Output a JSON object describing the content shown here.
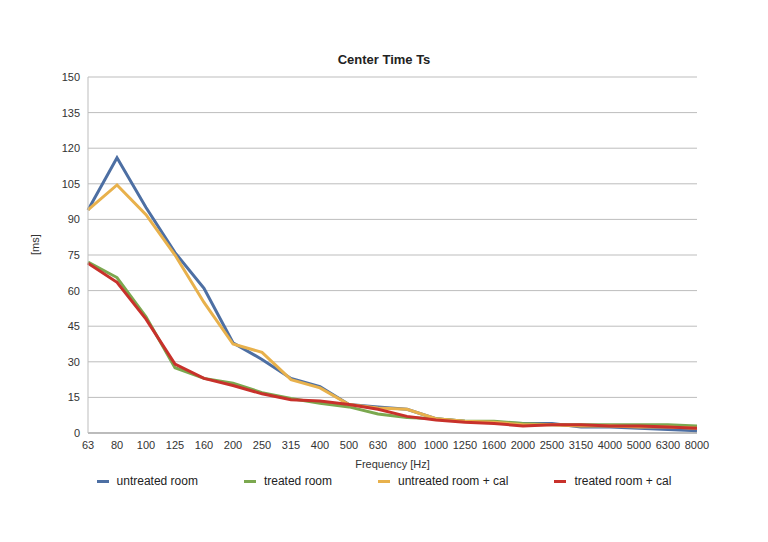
{
  "chart_data": {
    "type": "line",
    "title": "Center Time Ts",
    "x_label": "Frequency [Hz]",
    "y_label": "[ms]",
    "categories": [
      "63",
      "80",
      "100",
      "125",
      "160",
      "200",
      "250",
      "315",
      "400",
      "500",
      "630",
      "800",
      "1000",
      "1250",
      "1600",
      "2000",
      "2500",
      "3150",
      "4000",
      "5000",
      "6300",
      "8000"
    ],
    "series": [
      {
        "name": "untreated room",
        "color": "#4d6fa3",
        "values": [
          94,
          116,
          95,
          76,
          61,
          38,
          31,
          23,
          19.5,
          12,
          11,
          10,
          6,
          5,
          4.5,
          4,
          4,
          2.5,
          2.5,
          2,
          1.5,
          1
        ]
      },
      {
        "name": "treated room",
        "color": "#7ba84f",
        "values": [
          72,
          65.5,
          49,
          27.5,
          23,
          21,
          17,
          14.5,
          12.5,
          11,
          8,
          6.5,
          6,
          5,
          5,
          4,
          3.5,
          3.5,
          3.5,
          3.5,
          3.5,
          3
        ]
      },
      {
        "name": "untreated room + cal",
        "color": "#e8b14c",
        "values": [
          94,
          104.5,
          92,
          75,
          55,
          37.5,
          34,
          22.5,
          19,
          12,
          10.5,
          10,
          6,
          5,
          4.5,
          3.5,
          3.5,
          3,
          3,
          2.5,
          2.5,
          2
        ]
      },
      {
        "name": "treated room + cal",
        "color": "#c8312b",
        "values": [
          71.5,
          63.5,
          48,
          29,
          23,
          20,
          16.5,
          14,
          13.5,
          12,
          10,
          7,
          5.5,
          4.5,
          4,
          3,
          3.5,
          3.5,
          3,
          3,
          2.5,
          2
        ]
      }
    ],
    "ylim": [
      0,
      150
    ],
    "yticks": [
      0,
      15,
      30,
      45,
      60,
      75,
      90,
      105,
      120,
      135,
      150
    ],
    "grid": true,
    "legend": "bottom"
  }
}
